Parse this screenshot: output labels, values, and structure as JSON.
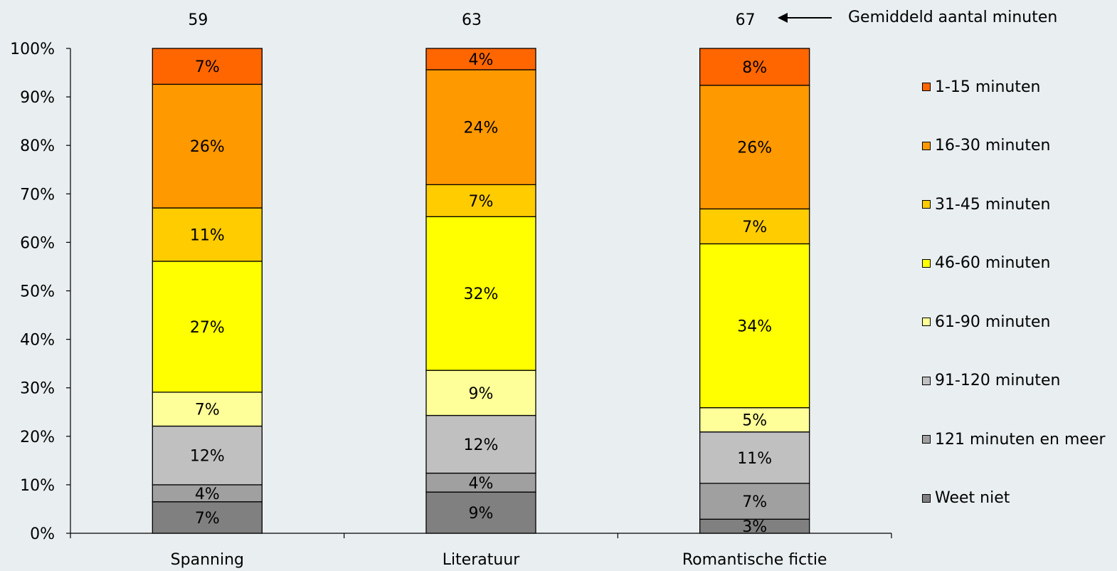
{
  "chart_data": {
    "type": "bar",
    "stacked": true,
    "categories": [
      "Spanning",
      "Literatuur",
      "Romantische fictie"
    ],
    "averages": [
      "59",
      "63",
      "67"
    ],
    "average_label": "Gemiddeld aantal minuten",
    "y_ticks": [
      "0%",
      "10%",
      "20%",
      "30%",
      "40%",
      "50%",
      "60%",
      "70%",
      "80%",
      "90%",
      "100%"
    ],
    "ylim": [
      0,
      100
    ],
    "legend_position": "right",
    "series": [
      {
        "name": "Weet niet",
        "color": "#808080",
        "values": [
          6.5,
          8.5,
          2.9
        ],
        "labels": [
          "7%",
          "9%",
          "3%"
        ]
      },
      {
        "name": "121 minuten en meer",
        "color": "#a0a0a0",
        "values": [
          3.5,
          3.9,
          7.4
        ],
        "labels": [
          "4%",
          "4%",
          "7%"
        ]
      },
      {
        "name": "91-120 minuten",
        "color": "#c0c0c0",
        "values": [
          12.1,
          11.9,
          10.6
        ],
        "labels": [
          "12%",
          "12%",
          "11%"
        ]
      },
      {
        "name": "61-90 minuten",
        "color": "#ffff99",
        "values": [
          7.0,
          9.3,
          5.0
        ],
        "labels": [
          "7%",
          "9%",
          "5%"
        ]
      },
      {
        "name": "46-60 minuten",
        "color": "#ffff00",
        "values": [
          27.0,
          31.7,
          33.8
        ],
        "labels": [
          "27%",
          "32%",
          "34%"
        ]
      },
      {
        "name": "31-45 minuten",
        "color": "#ffcc00",
        "values": [
          11.0,
          6.6,
          7.2
        ],
        "labels": [
          "11%",
          "7%",
          "7%"
        ]
      },
      {
        "name": "16-30 minuten",
        "color": "#ff9900",
        "values": [
          25.5,
          23.7,
          25.5
        ],
        "labels": [
          "26%",
          "24%",
          "26%"
        ]
      },
      {
        "name": "1-15 minuten",
        "color": "#ff6600",
        "values": [
          7.4,
          4.4,
          7.6
        ],
        "labels": [
          "7%",
          "4%",
          "8%"
        ]
      }
    ],
    "legend_order": [
      "1-15 minuten",
      "16-30 minuten",
      "31-45 minuten",
      "46-60 minuten",
      "61-90 minuten",
      "91-120 minuten",
      "121 minuten en meer",
      "Weet niet"
    ]
  }
}
